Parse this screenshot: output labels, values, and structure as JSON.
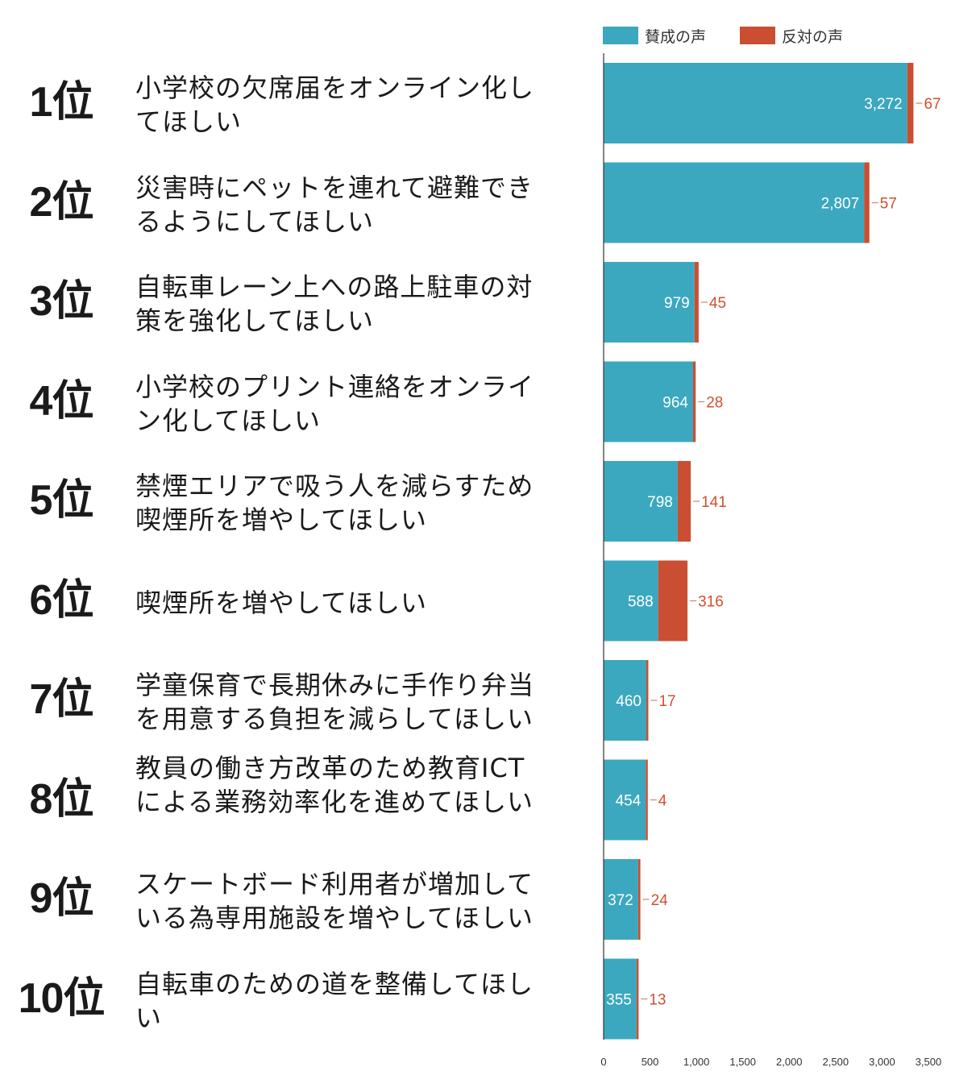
{
  "legend": {
    "for_label": "賛成の声",
    "against_label": "反対の声",
    "for_color": "#3ba8bf",
    "against_color": "#ca4e31"
  },
  "rows": [
    {
      "rank": "1位",
      "text": "小学校の欠席届をオンライン化してほしい",
      "for": 3272,
      "against": 67,
      "for_label": "3,272",
      "against_label": "67"
    },
    {
      "rank": "2位",
      "text": "災害時にペットを連れて避難できるようにしてほしい",
      "for": 2807,
      "against": 57,
      "for_label": "2,807",
      "against_label": "57"
    },
    {
      "rank": "3位",
      "text": "自転車レーン上への路上駐車の対策を強化してほしい",
      "for": 979,
      "against": 45,
      "for_label": "979",
      "against_label": "45"
    },
    {
      "rank": "4位",
      "text": "小学校のプリント連絡をオンライン化してほしい",
      "for": 964,
      "against": 28,
      "for_label": "964",
      "against_label": "28"
    },
    {
      "rank": "5位",
      "text": "禁煙エリアで吸う人を減らすため喫煙所を増やしてほしい",
      "for": 798,
      "against": 141,
      "for_label": "798",
      "against_label": "141"
    },
    {
      "rank": "6位",
      "text": "喫煙所を増やしてほしい",
      "for": 588,
      "against": 316,
      "for_label": "588",
      "against_label": "316"
    },
    {
      "rank": "7位",
      "text": "学童保育で長期休みに手作り弁当を用意する負担を減らしてほしい",
      "for": 460,
      "against": 17,
      "for_label": "460",
      "against_label": "17"
    },
    {
      "rank": "8位",
      "text": "教員の働き方改革のため教育ICTによる業務効率化を進めてほしい",
      "for": 454,
      "against": 4,
      "for_label": "454",
      "against_label": "4"
    },
    {
      "rank": "9位",
      "text": "スケートボード利用者が増加している為専用施設を増やしてほしい",
      "for": 372,
      "against": 24,
      "for_label": "372",
      "against_label": "24"
    },
    {
      "rank": "10位",
      "text": "自転車のための道を整備してほしい",
      "for": 355,
      "against": 13,
      "for_label": "355",
      "against_label": "13"
    }
  ],
  "chart_data": {
    "type": "bar",
    "orientation": "horizontal",
    "stacked": true,
    "categories": [
      "小学校の欠席届をオンライン化してほしい",
      "災害時にペットを連れて避難できるようにしてほしい",
      "自転車レーン上への路上駐車の対策を強化してほしい",
      "小学校のプリント連絡をオンライン化してほしい",
      "禁煙エリアで吸う人を減らすため喫煙所を増やしてほしい",
      "喫煙所を増やしてほしい",
      "学童保育で長期休みに手作り弁当を用意する負担を減らしてほしい",
      "教員の働き方改革のため教育ICTによる業務効率化を進めてほしい",
      "スケートボード利用者が増加している為専用施設を増やしてほしい",
      "自転車のための道を整備してほしい"
    ],
    "series": [
      {
        "name": "賛成の声",
        "values": [
          3272,
          2807,
          979,
          964,
          798,
          588,
          460,
          454,
          372,
          355
        ]
      },
      {
        "name": "反対の声",
        "values": [
          67,
          57,
          45,
          28,
          141,
          316,
          17,
          4,
          24,
          13
        ]
      }
    ],
    "xlim": [
      0,
      3500
    ],
    "xticks": [
      0,
      500,
      1000,
      1500,
      2000,
      2500,
      3000,
      3500
    ],
    "xtick_labels": [
      "0",
      "500",
      "1,000",
      "1,500",
      "2,000",
      "2,500",
      "3,000",
      "3,500"
    ],
    "legend_position": "top",
    "grid": false
  }
}
